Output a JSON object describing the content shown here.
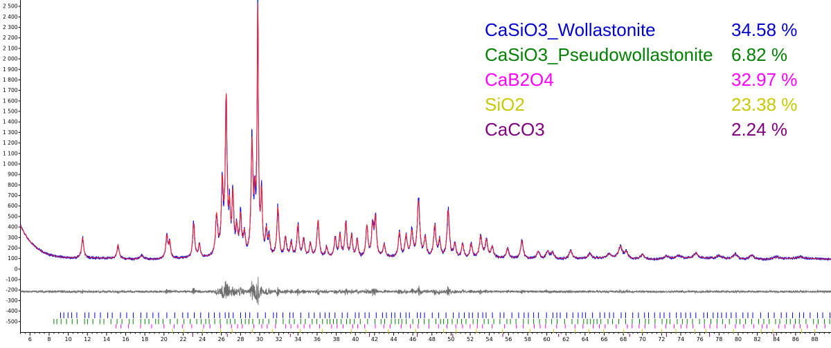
{
  "chart_data": {
    "type": "line",
    "title": "",
    "xlabel": "",
    "ylabel": "",
    "xlim": [
      5.0,
      89.7
    ],
    "ylim": [
      -600,
      2600
    ],
    "grid": false,
    "y_ticks": [
      -500,
      -400,
      -300,
      -200,
      -100,
      0,
      100,
      200,
      300,
      400,
      500,
      600,
      700,
      800,
      900,
      1000,
      1100,
      1200,
      1300,
      1400,
      1500,
      1600,
      1700,
      1800,
      1900,
      2000,
      2100,
      2200,
      2300,
      2400,
      2500
    ],
    "x_ticks": [
      6,
      8,
      10,
      12,
      14,
      16,
      18,
      20,
      22,
      24,
      26,
      28,
      30,
      32,
      34,
      36,
      38,
      40,
      42,
      44,
      46,
      48,
      50,
      52,
      54,
      56,
      58,
      60,
      62,
      64,
      66,
      68,
      70,
      72,
      74,
      76,
      78,
      80,
      82,
      84,
      86,
      88
    ],
    "background": {
      "a": 95,
      "b": 320,
      "tau": 1.6
    },
    "peaks": [
      {
        "x": 11.5,
        "h": 190,
        "w": 0.13
      },
      {
        "x": 15.2,
        "h": 130,
        "w": 0.13
      },
      {
        "x": 17.7,
        "h": 35,
        "w": 0.25
      },
      {
        "x": 20.3,
        "h": 215,
        "w": 0.14
      },
      {
        "x": 20.6,
        "h": 140,
        "w": 0.1
      },
      {
        "x": 23.1,
        "h": 320,
        "w": 0.12
      },
      {
        "x": 23.7,
        "h": 120,
        "w": 0.12
      },
      {
        "x": 25.5,
        "h": 380,
        "w": 0.14
      },
      {
        "x": 26.1,
        "h": 660,
        "w": 0.13
      },
      {
        "x": 26.5,
        "h": 1450,
        "w": 0.11
      },
      {
        "x": 26.85,
        "h": 380,
        "w": 0.1
      },
      {
        "x": 27.2,
        "h": 560,
        "w": 0.12
      },
      {
        "x": 27.6,
        "h": 240,
        "w": 0.12
      },
      {
        "x": 28.0,
        "h": 370,
        "w": 0.13
      },
      {
        "x": 28.4,
        "h": 200,
        "w": 0.13
      },
      {
        "x": 29.2,
        "h": 1050,
        "w": 0.12
      },
      {
        "x": 29.5,
        "h": 450,
        "w": 0.1
      },
      {
        "x": 29.8,
        "h": 2300,
        "w": 0.085
      },
      {
        "x": 30.2,
        "h": 550,
        "w": 0.1
      },
      {
        "x": 30.7,
        "h": 230,
        "w": 0.13
      },
      {
        "x": 31.0,
        "h": 160,
        "w": 0.12
      },
      {
        "x": 31.9,
        "h": 470,
        "w": 0.13
      },
      {
        "x": 32.7,
        "h": 180,
        "w": 0.13
      },
      {
        "x": 33.3,
        "h": 130,
        "w": 0.13
      },
      {
        "x": 34.0,
        "h": 300,
        "w": 0.13
      },
      {
        "x": 34.6,
        "h": 170,
        "w": 0.13
      },
      {
        "x": 35.3,
        "h": 130,
        "w": 0.13
      },
      {
        "x": 36.1,
        "h": 350,
        "w": 0.14
      },
      {
        "x": 37.0,
        "h": 100,
        "w": 0.15
      },
      {
        "x": 37.9,
        "h": 190,
        "w": 0.14
      },
      {
        "x": 38.4,
        "h": 210,
        "w": 0.13
      },
      {
        "x": 39.0,
        "h": 330,
        "w": 0.13
      },
      {
        "x": 39.6,
        "h": 210,
        "w": 0.13
      },
      {
        "x": 40.2,
        "h": 170,
        "w": 0.13
      },
      {
        "x": 41.2,
        "h": 300,
        "w": 0.13
      },
      {
        "x": 41.8,
        "h": 290,
        "w": 0.13
      },
      {
        "x": 42.1,
        "h": 360,
        "w": 0.13
      },
      {
        "x": 43.0,
        "h": 120,
        "w": 0.15
      },
      {
        "x": 44.6,
        "h": 230,
        "w": 0.14
      },
      {
        "x": 45.3,
        "h": 200,
        "w": 0.14
      },
      {
        "x": 45.9,
        "h": 230,
        "w": 0.14
      },
      {
        "x": 46.6,
        "h": 530,
        "w": 0.16
      },
      {
        "x": 47.3,
        "h": 180,
        "w": 0.14
      },
      {
        "x": 48.3,
        "h": 300,
        "w": 0.15
      },
      {
        "x": 48.8,
        "h": 160,
        "w": 0.14
      },
      {
        "x": 49.7,
        "h": 450,
        "w": 0.15
      },
      {
        "x": 50.4,
        "h": 130,
        "w": 0.15
      },
      {
        "x": 51.2,
        "h": 130,
        "w": 0.15
      },
      {
        "x": 52.1,
        "h": 130,
        "w": 0.15
      },
      {
        "x": 53.1,
        "h": 200,
        "w": 0.17
      },
      {
        "x": 53.7,
        "h": 160,
        "w": 0.15
      },
      {
        "x": 54.3,
        "h": 100,
        "w": 0.15
      },
      {
        "x": 55.9,
        "h": 90,
        "w": 0.15
      },
      {
        "x": 57.4,
        "h": 170,
        "w": 0.16
      },
      {
        "x": 59.1,
        "h": 70,
        "w": 0.2
      },
      {
        "x": 60.1,
        "h": 70,
        "w": 0.2
      },
      {
        "x": 60.6,
        "h": 60,
        "w": 0.2
      },
      {
        "x": 62.5,
        "h": 80,
        "w": 0.2
      },
      {
        "x": 64.5,
        "h": 45,
        "w": 0.2
      },
      {
        "x": 66.5,
        "h": 40,
        "w": 0.25
      },
      {
        "x": 67.7,
        "h": 110,
        "w": 0.25
      },
      {
        "x": 68.3,
        "h": 60,
        "w": 0.2
      },
      {
        "x": 70.0,
        "h": 45,
        "w": 0.25
      },
      {
        "x": 72.5,
        "h": 30,
        "w": 0.3
      },
      {
        "x": 73.8,
        "h": 30,
        "w": 0.3
      },
      {
        "x": 75.6,
        "h": 50,
        "w": 0.25
      },
      {
        "x": 78.0,
        "h": 30,
        "w": 0.3
      },
      {
        "x": 79.7,
        "h": 50,
        "w": 0.25
      },
      {
        "x": 81.4,
        "h": 40,
        "w": 0.3
      },
      {
        "x": 84.0,
        "h": 20,
        "w": 0.3
      },
      {
        "x": 86.5,
        "h": 15,
        "w": 0.3
      }
    ],
    "series": [
      {
        "role": "observed",
        "color": "#0000e6"
      },
      {
        "role": "calculated",
        "color": "#ff2020"
      },
      {
        "role": "difference",
        "color": "#6e6e6e",
        "baseline": -215
      }
    ],
    "phases": [
      {
        "name": "CaSiO3_Wollastonite",
        "percent": "34.58 %",
        "color": "#0000cc",
        "tick_y": -440,
        "tick_len": 55,
        "tick_start": 9.2,
        "tick_step": 0.6
      },
      {
        "name": "CaSiO3_Pseudowollastonite",
        "percent": "6.82 %",
        "color": "#008000",
        "tick_y": -500,
        "tick_len": 50,
        "tick_start": 8.5,
        "tick_step": 0.55
      },
      {
        "name": "CaB2O4",
        "percent": "32.97 %",
        "color": "#ff00ff",
        "tick_y": -545,
        "tick_len": 40,
        "tick_start": 15.0,
        "tick_step": 0.9
      },
      {
        "name": "SiO2",
        "percent": "23.38 %",
        "color": "#c8c800",
        "tick_y": -590,
        "tick_len": 40,
        "tick_start": 20.9,
        "tick_step": 2.1
      },
      {
        "name": "CaCO3",
        "percent": "2.24 %",
        "color": "#800080",
        "tick_y": -630,
        "tick_len": 30,
        "tick_start": 23.0,
        "tick_step": 6.5
      }
    ]
  }
}
